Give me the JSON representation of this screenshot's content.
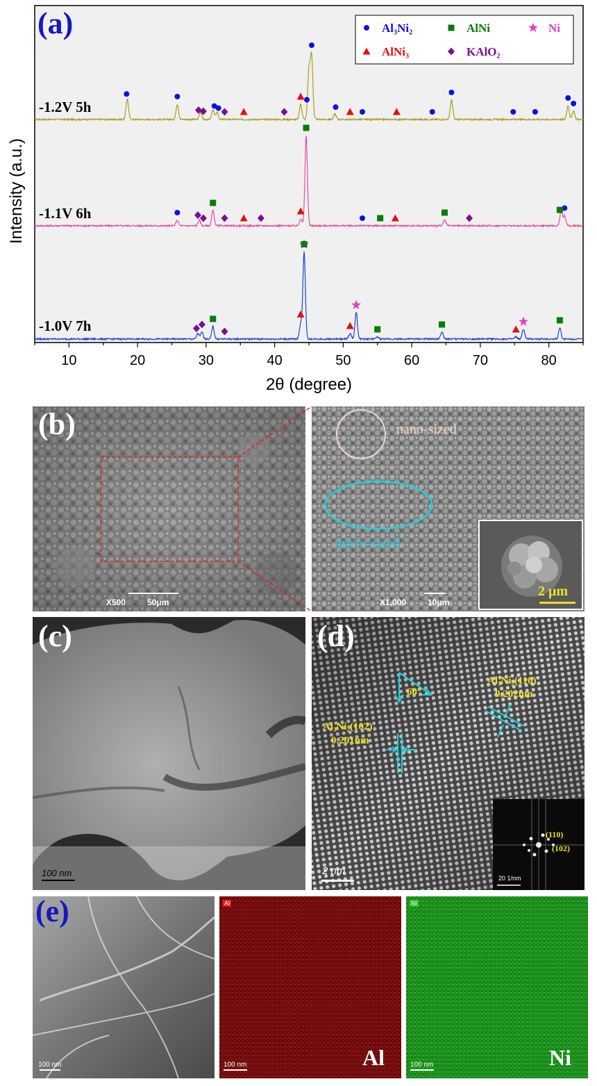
{
  "panel_a": {
    "label": "(a)",
    "ylabel": "Intensity (a.u.)",
    "xlabel": "2θ (degree)",
    "legend": [
      {
        "name": "Al3Ni2",
        "sub": "Al₃Ni₂",
        "marker": "circle",
        "color": "#1010e0"
      },
      {
        "name": "AlNi",
        "sub": "AlNi",
        "marker": "square",
        "color": "#0a7a0a"
      },
      {
        "name": "Ni",
        "sub": "Ni",
        "marker": "star",
        "color": "#e040c0"
      },
      {
        "name": "AlNi3",
        "sub": "AlNi₃",
        "marker": "triangle",
        "color": "#e01010"
      },
      {
        "name": "KAlO2",
        "sub": "KAlO₂",
        "marker": "diamond",
        "color": "#7a1090"
      }
    ]
  },
  "chart_data": {
    "type": "line",
    "xlabel": "2θ (degree)",
    "ylabel": "Intensity (a.u.)",
    "xlim": [
      5,
      85
    ],
    "xticks": [
      10,
      20,
      30,
      40,
      50,
      60,
      70,
      80
    ],
    "series": [
      {
        "name": "-1.2V 5h",
        "color": "#a8a020",
        "peaks": [
          [
            18.5,
            30
          ],
          [
            25.8,
            22
          ],
          [
            29.2,
            10
          ],
          [
            31.0,
            14
          ],
          [
            31.6,
            10
          ],
          [
            43.8,
            22
          ],
          [
            45.0,
            70
          ],
          [
            45.4,
            90
          ],
          [
            48.8,
            8
          ],
          [
            65.8,
            28
          ],
          [
            82.8,
            20
          ],
          [
            83.6,
            12
          ]
        ],
        "markers": [
          {
            "type": "circle",
            "x": [
              18.4,
              25.8,
              31.2,
              31.8,
              44.7,
              45.4,
              48.9,
              52.8,
              63.0,
              65.8,
              74.8,
              78.0,
              82.8,
              83.6
            ]
          },
          {
            "type": "diamond",
            "x": [
              28.9,
              29.6,
              32.7,
              41.4
            ]
          },
          {
            "type": "triangle",
            "x": [
              35.5,
              43.8,
              51.0,
              57.8
            ]
          }
        ]
      },
      {
        "name": "-1.1V 6h",
        "color": "#e050a0",
        "peaks": [
          [
            25.8,
            8
          ],
          [
            29.0,
            8
          ],
          [
            31.0,
            22
          ],
          [
            43.8,
            10
          ],
          [
            44.6,
            130
          ],
          [
            64.8,
            8
          ],
          [
            81.8,
            22
          ],
          [
            82.3,
            14
          ]
        ],
        "markers": [
          {
            "type": "circle",
            "x": [
              25.8,
              31.0,
              52.8,
              82.3
            ]
          },
          {
            "type": "square",
            "x": [
              31.0,
              44.6,
              55.4,
              64.8,
              81.6
            ]
          },
          {
            "type": "diamond",
            "x": [
              28.8,
              29.6,
              32.7,
              38.0,
              68.4
            ]
          },
          {
            "type": "triangle",
            "x": [
              35.5,
              43.8,
              57.6
            ]
          }
        ]
      },
      {
        "name": "-1.0V 7h",
        "color": "#2040d0",
        "peaks": [
          [
            28.8,
            8
          ],
          [
            29.4,
            10
          ],
          [
            31.0,
            18
          ],
          [
            43.8,
            22
          ],
          [
            44.3,
            125
          ],
          [
            51.0,
            8
          ],
          [
            51.9,
            38
          ],
          [
            55.0,
            3
          ],
          [
            64.4,
            10
          ],
          [
            75.2,
            3
          ],
          [
            76.3,
            14
          ],
          [
            81.6,
            16
          ]
        ],
        "markers": [
          {
            "type": "star",
            "x": [
              44.3,
              51.9,
              76.3
            ]
          },
          {
            "type": "square",
            "x": [
              31.0,
              44.3,
              55.0,
              64.4,
              81.6
            ]
          },
          {
            "type": "diamond",
            "x": [
              28.6,
              29.4,
              32.7
            ]
          },
          {
            "type": "triangle",
            "x": [
              43.8,
              51.0,
              75.2
            ]
          }
        ]
      }
    ]
  },
  "panel_b": {
    "label": "(b)",
    "left_mag": "X500",
    "left_scale": "50μm",
    "right_mag": "X1,000",
    "right_scale": "10μm",
    "annotation_nano": "nano-sized",
    "annotation_micro": "micro-sized",
    "inset_scale": "2 μm",
    "box_color": "#e02020",
    "nano_color": "#f0d8c8",
    "micro_color": "#20d0e0"
  },
  "panel_c": {
    "label": "(c)",
    "scale": "100 nm"
  },
  "panel_d": {
    "label": "(d)",
    "angle": "60°",
    "plane1": "Al₃Ni₂(102)",
    "spacing1": "0.201nm",
    "plane2": "Al₃Ni₂(110)",
    "spacing2": "0.202nm",
    "scale": "2 nm",
    "fft_label1": "(110)",
    "fft_label2": "(102)",
    "fft_scale": "20 1/nm",
    "annot_color": "#f0e020",
    "arrow_color": "#20d0e0"
  },
  "panel_e": {
    "label": "(e)",
    "map_al_tag": "Al",
    "map_ni_tag": "Ni",
    "map_al_label": "Al",
    "map_ni_label": "Ni",
    "scale1": "100 nm",
    "scale2": "100 nm",
    "scale3": "100 nm"
  }
}
